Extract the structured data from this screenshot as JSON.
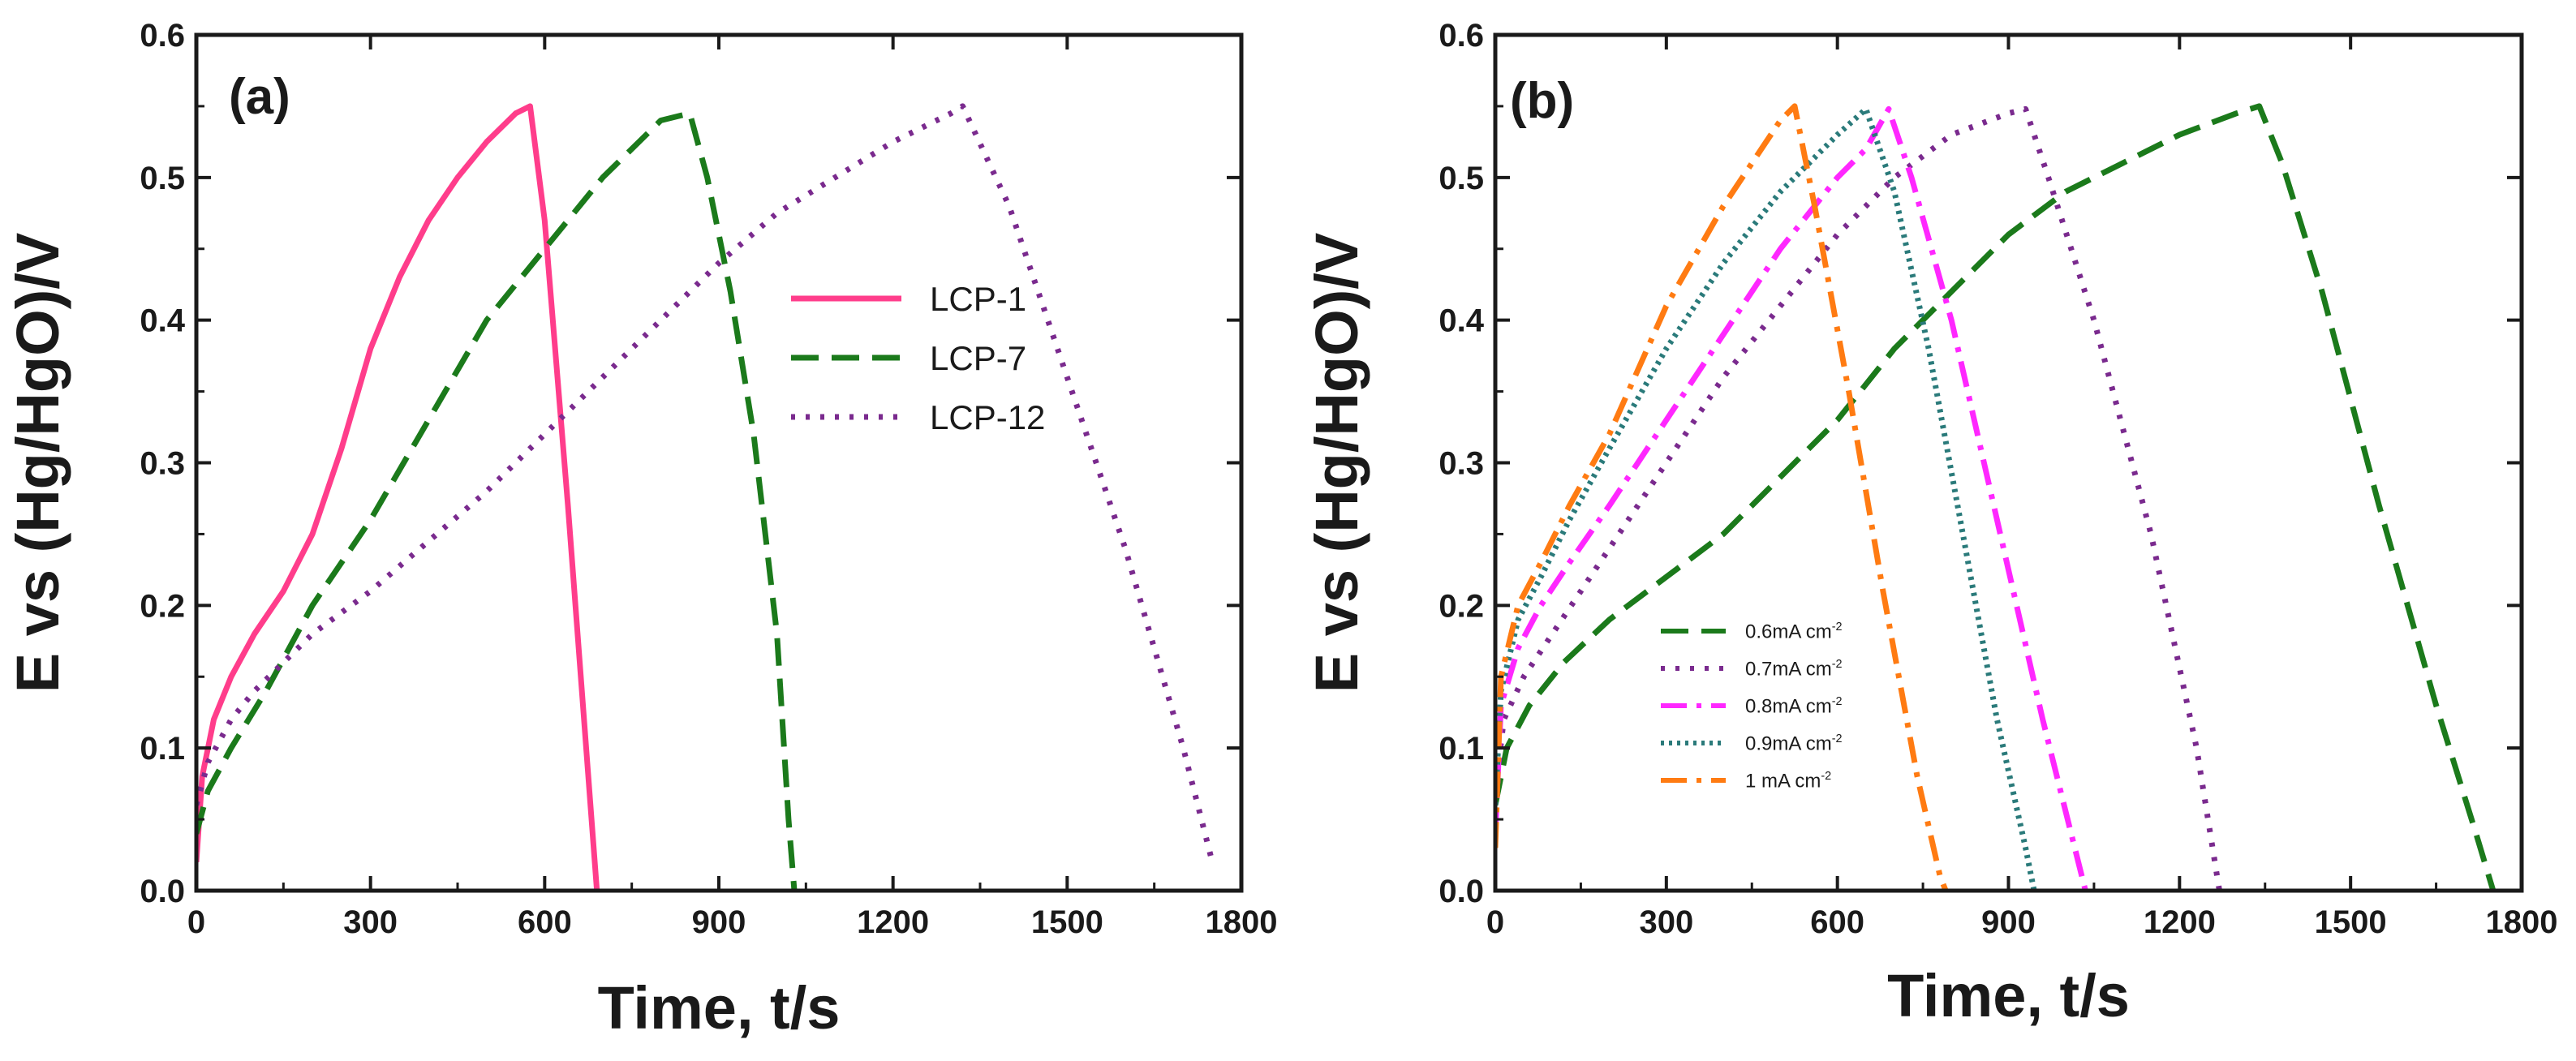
{
  "chart_data": [
    {
      "type": "line",
      "panel_label": "(a)",
      "title": "",
      "xlabel": "Time, t/s",
      "ylabel": "E vs (Hg/HgO)/V",
      "xlim": [
        0,
        1800
      ],
      "ylim": [
        0,
        0.6
      ],
      "xticks": [
        0,
        300,
        600,
        900,
        1200,
        1500,
        1800
      ],
      "yticks": [
        0.0,
        0.1,
        0.2,
        0.3,
        0.4,
        0.5,
        0.6
      ],
      "xtick_labels": [
        "0",
        "300",
        "600",
        "900",
        "1200",
        "1500",
        "1800"
      ],
      "ytick_labels": [
        "0.0",
        "0.1",
        "0.2",
        "0.3",
        "0.4",
        "0.5",
        "0.6"
      ],
      "grid": false,
      "legend_position": "center-right",
      "series": [
        {
          "name": "LCP-1",
          "color": "#ff3d8b",
          "style": "solid",
          "x": [
            0,
            10,
            30,
            60,
            100,
            150,
            200,
            250,
            300,
            350,
            400,
            450,
            500,
            550,
            575,
            600,
            640,
            690
          ],
          "y": [
            0.02,
            0.08,
            0.12,
            0.15,
            0.18,
            0.21,
            0.25,
            0.31,
            0.38,
            0.43,
            0.47,
            0.5,
            0.525,
            0.545,
            0.55,
            0.47,
            0.27,
            0.0
          ]
        },
        {
          "name": "LCP-7",
          "color": "#1b7a1b",
          "style": "dashed",
          "x": [
            0,
            20,
            60,
            120,
            200,
            300,
            400,
            500,
            600,
            700,
            800,
            850,
            880,
            920,
            960,
            1000,
            1020,
            1030
          ],
          "y": [
            0.04,
            0.07,
            0.1,
            0.14,
            0.2,
            0.26,
            0.33,
            0.4,
            0.45,
            0.5,
            0.54,
            0.545,
            0.5,
            0.42,
            0.32,
            0.18,
            0.05,
            0.0
          ]
        },
        {
          "name": "LCP-12",
          "color": "#7a2a8e",
          "style": "dotted",
          "x": [
            0,
            20,
            60,
            100,
            150,
            200,
            300,
            400,
            500,
            600,
            700,
            800,
            900,
            1000,
            1100,
            1200,
            1300,
            1320,
            1400,
            1500,
            1600,
            1700,
            1750
          ],
          "y": [
            0.06,
            0.09,
            0.12,
            0.14,
            0.16,
            0.18,
            0.21,
            0.245,
            0.28,
            0.32,
            0.36,
            0.4,
            0.44,
            0.475,
            0.5,
            0.525,
            0.545,
            0.55,
            0.48,
            0.36,
            0.24,
            0.1,
            0.02
          ]
        }
      ],
      "legend_entries": [
        "LCP-1",
        "LCP-7",
        "LCP-12"
      ]
    },
    {
      "type": "line",
      "panel_label": "(b)",
      "title": "",
      "xlabel": "Time, t/s",
      "ylabel": "E vs (Hg/HgO)/V",
      "xlim": [
        0,
        1800
      ],
      "ylim": [
        0,
        0.6
      ],
      "xticks": [
        0,
        300,
        600,
        900,
        1200,
        1500,
        1800
      ],
      "yticks": [
        0.0,
        0.1,
        0.2,
        0.3,
        0.4,
        0.5,
        0.6
      ],
      "xtick_labels": [
        "0",
        "300",
        "600",
        "900",
        "1200",
        "1500",
        "1800"
      ],
      "ytick_labels": [
        "0.0",
        "0.1",
        "0.2",
        "0.3",
        "0.4",
        "0.5",
        "0.6"
      ],
      "grid": false,
      "legend_position": "lower-left",
      "series": [
        {
          "name": "0.6mA cm",
          "sup": "-2",
          "color": "#1b7a1b",
          "style": "dashed",
          "x": [
            0,
            20,
            60,
            120,
            200,
            300,
            400,
            500,
            600,
            700,
            800,
            900,
            1000,
            1100,
            1200,
            1300,
            1340,
            1380,
            1450,
            1550,
            1650,
            1720,
            1750
          ],
          "y": [
            0.06,
            0.1,
            0.13,
            0.16,
            0.19,
            0.22,
            0.25,
            0.29,
            0.33,
            0.38,
            0.42,
            0.46,
            0.49,
            0.51,
            0.53,
            0.545,
            0.55,
            0.51,
            0.42,
            0.27,
            0.13,
            0.04,
            0.0
          ]
        },
        {
          "name": "0.7mA cm",
          "sup": "-2",
          "color": "#7a2a8e",
          "style": "dotted",
          "x": [
            0,
            15,
            50,
            100,
            150,
            200,
            300,
            400,
            500,
            600,
            700,
            800,
            900,
            930,
            970,
            1050,
            1150,
            1230,
            1270
          ],
          "y": [
            0.07,
            0.12,
            0.15,
            0.18,
            0.21,
            0.24,
            0.3,
            0.36,
            0.41,
            0.46,
            0.5,
            0.53,
            0.545,
            0.548,
            0.5,
            0.4,
            0.25,
            0.1,
            0.0
          ]
        },
        {
          "name": "0.8mA cm",
          "sup": "-2",
          "color": "#ff27ff",
          "style": "dashdot",
          "x": [
            0,
            10,
            40,
            80,
            130,
            200,
            300,
            400,
            500,
            600,
            650,
            690,
            730,
            800,
            880,
            960,
            1010,
            1035
          ],
          "y": [
            0.04,
            0.13,
            0.17,
            0.2,
            0.23,
            0.27,
            0.33,
            0.39,
            0.45,
            0.5,
            0.52,
            0.548,
            0.5,
            0.4,
            0.26,
            0.12,
            0.04,
            0.0
          ]
        },
        {
          "name": "0.9mA cm",
          "sup": "-2",
          "color": "#2a7a7a",
          "style": "dense-dotted",
          "x": [
            0,
            10,
            40,
            80,
            130,
            200,
            300,
            400,
            500,
            600,
            650,
            700,
            760,
            820,
            880,
            930,
            945
          ],
          "y": [
            0.06,
            0.14,
            0.19,
            0.22,
            0.26,
            0.31,
            0.38,
            0.44,
            0.49,
            0.53,
            0.548,
            0.49,
            0.38,
            0.25,
            0.12,
            0.03,
            0.0
          ]
        },
        {
          "name": "1 mA cm",
          "sup": "-2",
          "color": "#ff7b12",
          "style": "dashdot",
          "x": [
            0,
            10,
            40,
            80,
            130,
            200,
            300,
            400,
            500,
            525,
            560,
            620,
            680,
            740,
            780,
            790
          ],
          "y": [
            0.03,
            0.15,
            0.2,
            0.23,
            0.27,
            0.32,
            0.41,
            0.48,
            0.54,
            0.55,
            0.48,
            0.35,
            0.21,
            0.08,
            0.01,
            0.0
          ]
        }
      ],
      "legend_entries": [
        "0.6mA cm-2",
        "0.7mA cm-2",
        "0.8mA cm-2",
        "0.9mA cm-2",
        "1 mA cm-2"
      ]
    }
  ]
}
